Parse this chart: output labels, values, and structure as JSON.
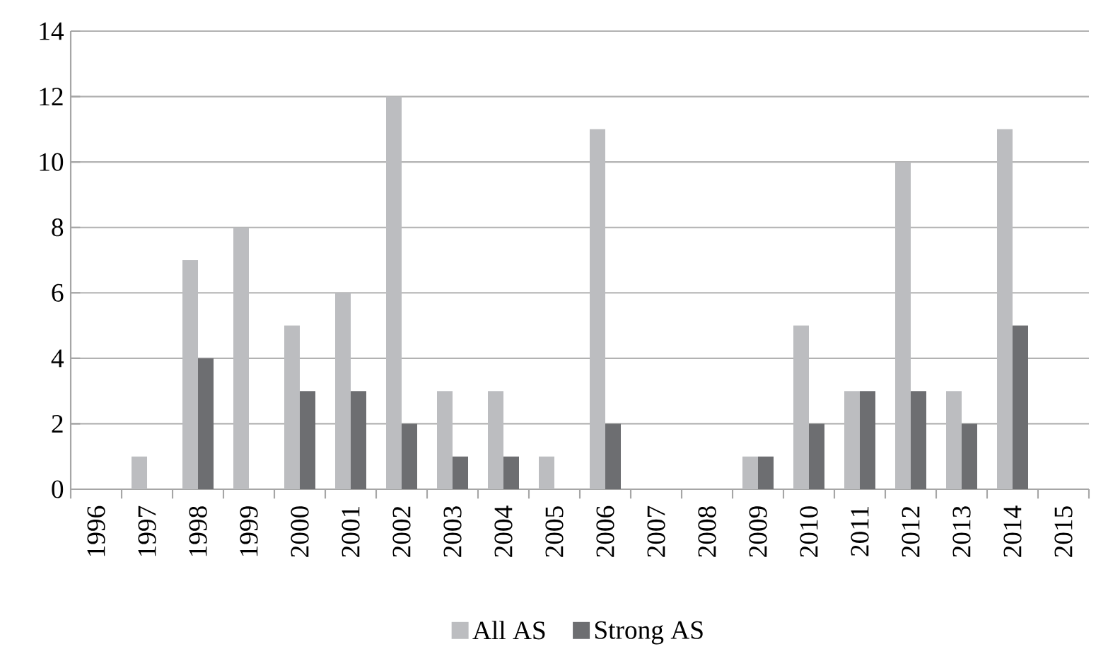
{
  "chart_data": {
    "type": "bar",
    "categories": [
      "1996",
      "1997",
      "1998",
      "1999",
      "2000",
      "2001",
      "2002",
      "2003",
      "2004",
      "2005",
      "2006",
      "2007",
      "2008",
      "2009",
      "2010",
      "2011",
      "2012",
      "2013",
      "2014",
      "2015"
    ],
    "series": [
      {
        "name": "All AS",
        "color": "#bcbdc0",
        "values": [
          0,
          1,
          7,
          8,
          5,
          6,
          12,
          3,
          3,
          1,
          11,
          0,
          0,
          1,
          5,
          3,
          10,
          3,
          11,
          0
        ]
      },
      {
        "name": "Strong AS",
        "color": "#6d6e71",
        "values": [
          0,
          0,
          4,
          0,
          3,
          3,
          2,
          1,
          1,
          0,
          2,
          0,
          0,
          1,
          2,
          3,
          3,
          2,
          5,
          0
        ]
      }
    ],
    "ylim": [
      0,
      14
    ],
    "yticks": [
      0,
      2,
      4,
      6,
      8,
      10,
      12,
      14
    ],
    "grid": "y",
    "legend": "bottom"
  }
}
